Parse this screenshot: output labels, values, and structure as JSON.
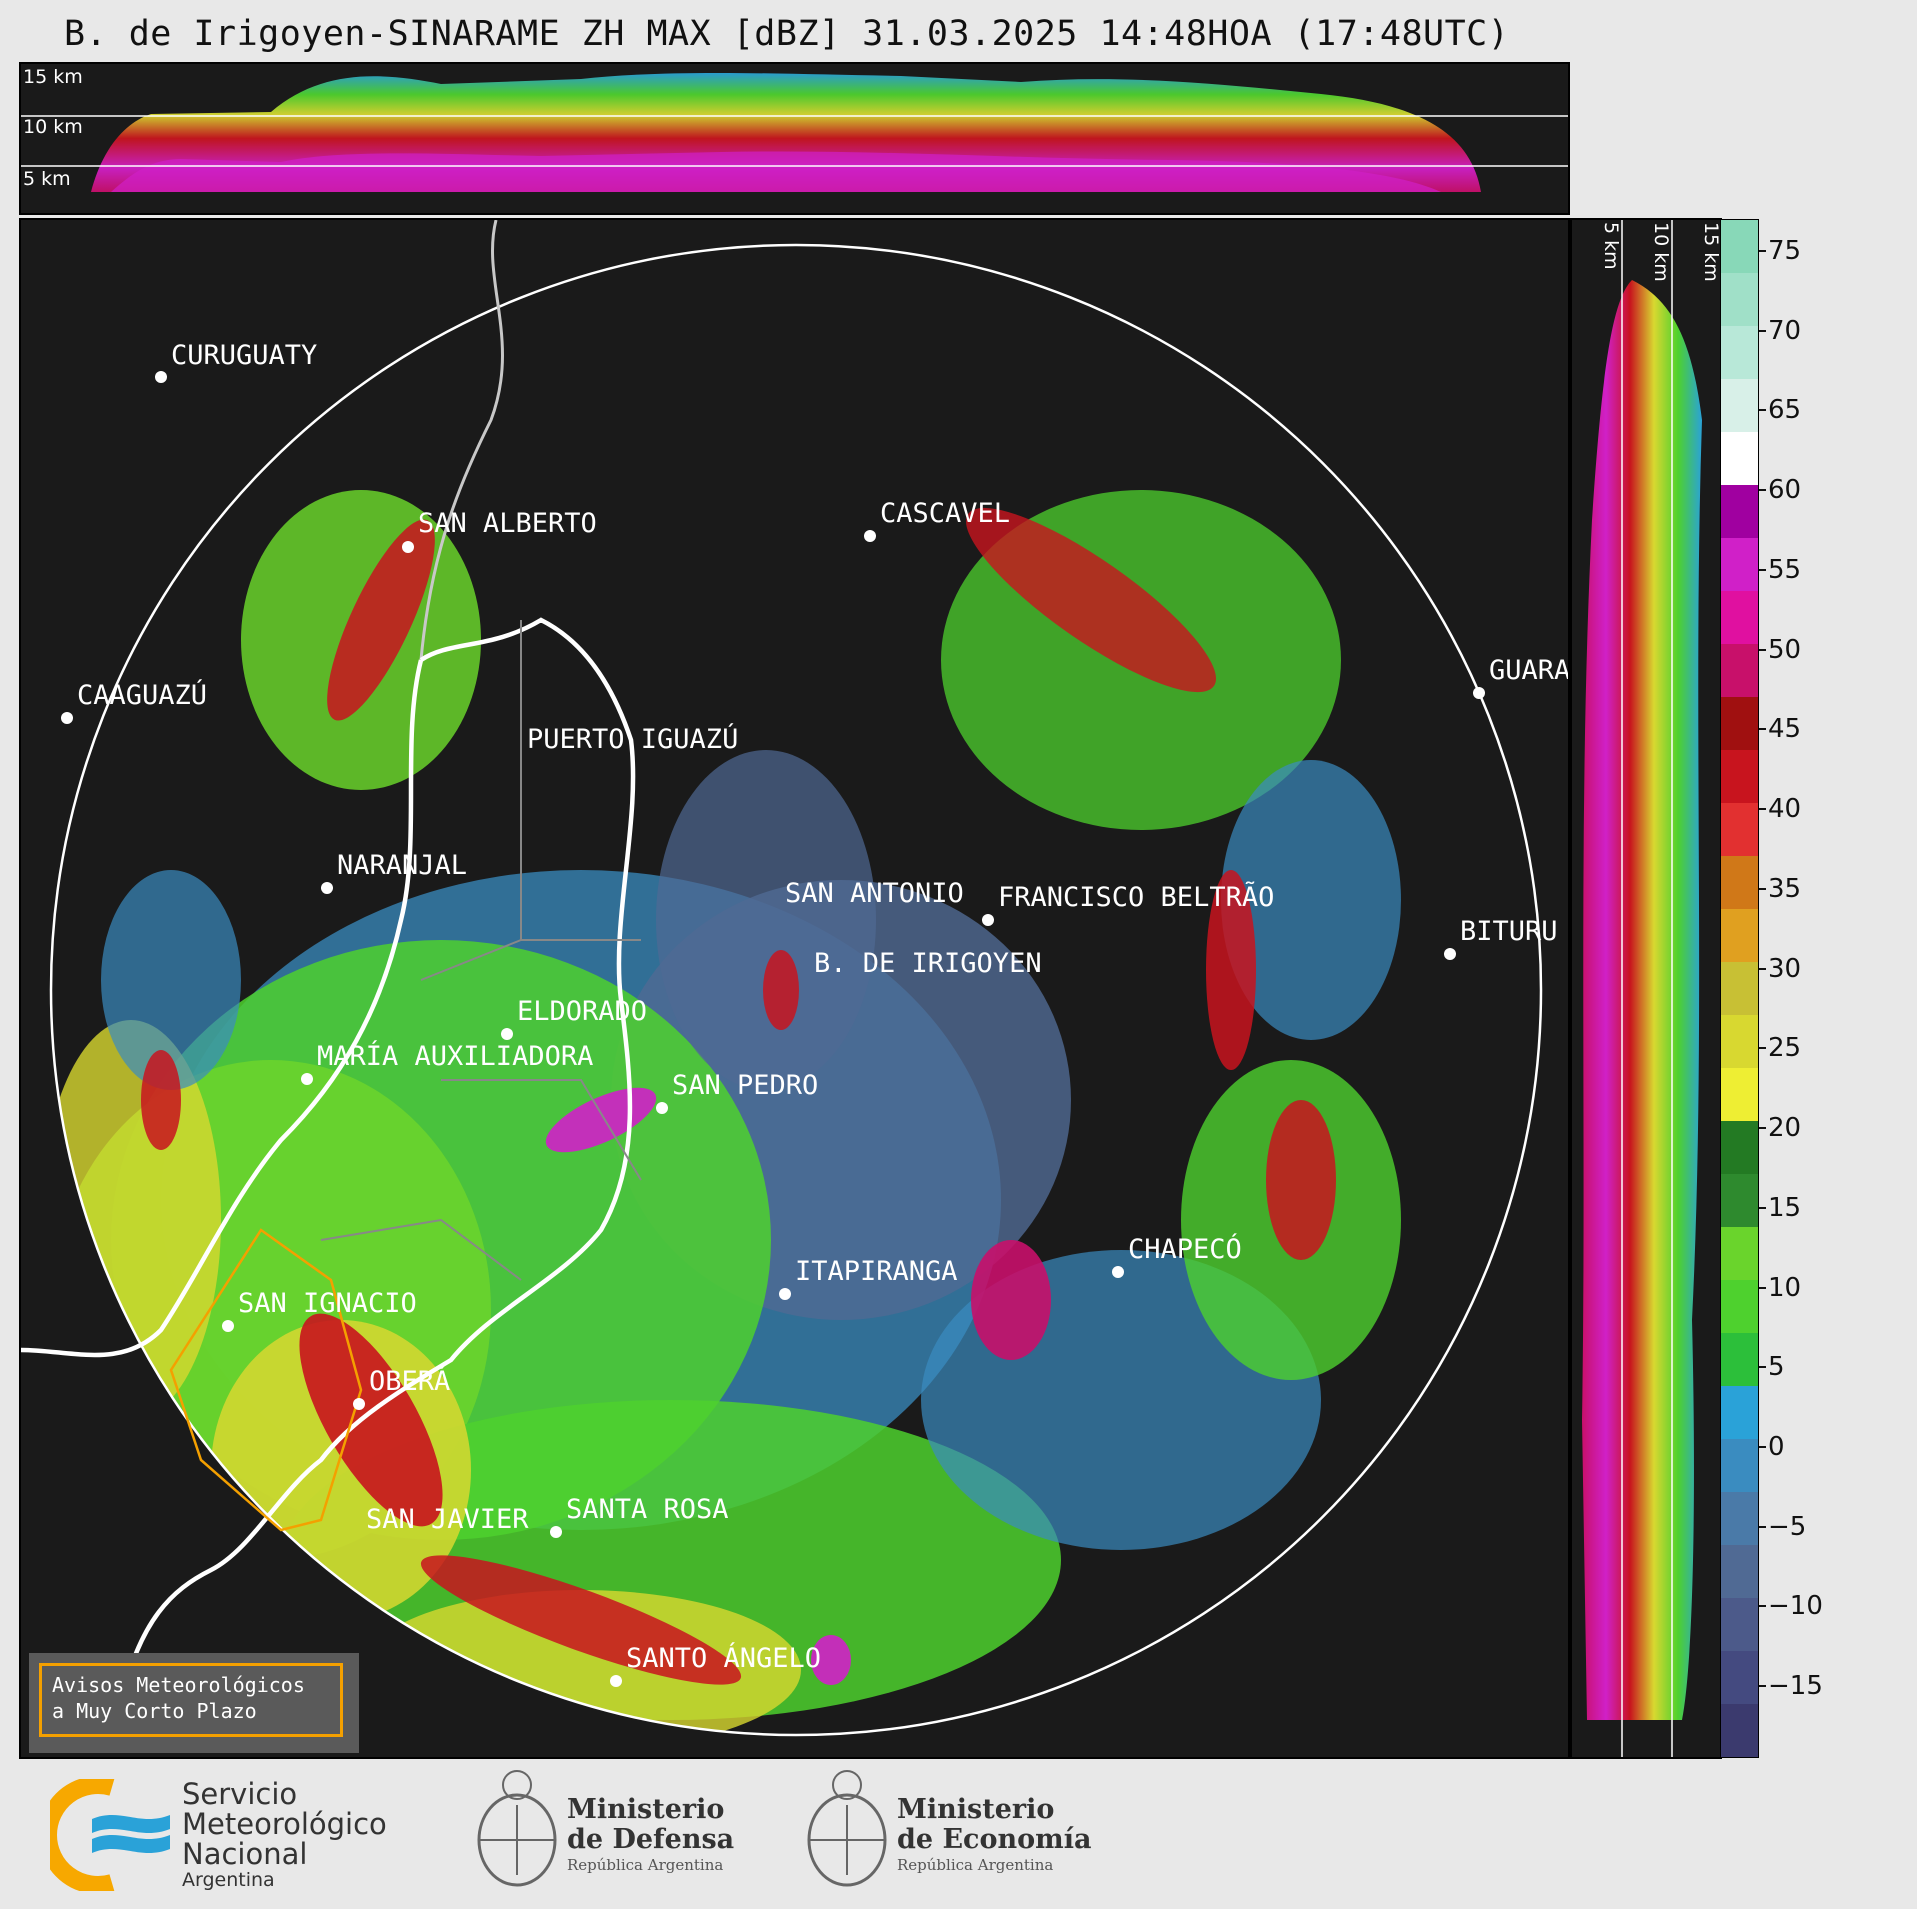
{
  "title": "B. de Irigoyen-SINARAME ZH MAX [dBZ] 31.03.2025 14:48HOA (17:48UTC)",
  "top_strip": {
    "km_labels": [
      "15 km",
      "10 km",
      "5 km"
    ]
  },
  "side_strip": {
    "km_labels": [
      "5 km",
      "10 km",
      "15 km"
    ]
  },
  "colorbar": {
    "unit": "dBZ",
    "ticks": [
      "75",
      "70",
      "65",
      "60",
      "55",
      "50",
      "45",
      "40",
      "35",
      "30",
      "25",
      "20",
      "15",
      "10",
      "5",
      "0",
      "−5",
      "−10",
      "−15"
    ],
    "colors": [
      "#3b3a6e",
      "#444a80",
      "#4c5a8a",
      "#506a94",
      "#4a7aa8",
      "#3a8cc0",
      "#2aa2d8",
      "#2cbf3a",
      "#4ed12e",
      "#6ad42c",
      "#2e8a2e",
      "#237a23",
      "#eeee33",
      "#d8d830",
      "#c8c034",
      "#e0a020",
      "#d07818",
      "#e23030",
      "#c8141e",
      "#a01010",
      "#c8106a",
      "#e010a0",
      "#d020c8",
      "#a000a0",
      "#ffffff",
      "#d8f0e8",
      "#b8e8d8",
      "#a0e0c8",
      "#88d8b8"
    ]
  },
  "cities": [
    {
      "name": "CURUGUATY",
      "label": "CURUGUATY"
    },
    {
      "name": "SAN ALBERTO",
      "label": "SAN ALBERTO"
    },
    {
      "name": "CASCAVEL",
      "label": "CASCAVEL"
    },
    {
      "name": "CAAGUAZU",
      "label": "CAAGUAZÚ"
    },
    {
      "name": "GUARAPUAVA",
      "label": "GUARA"
    },
    {
      "name": "PUERTO IGUAZU",
      "label": "PUERTO IGUAZÚ"
    },
    {
      "name": "NARANJAL",
      "label": "NARANJAL"
    },
    {
      "name": "SAN ANTONIO",
      "label": "SAN ANTONIO"
    },
    {
      "name": "FRANCISCO BELTRAO",
      "label": "FRANCISCO BELTRÃO"
    },
    {
      "name": "B DE IRIGOYEN",
      "label": "B. DE IRIGOYEN"
    },
    {
      "name": "BITURUNA",
      "label": "BITURU"
    },
    {
      "name": "ELDORADO",
      "label": "ELDORADO"
    },
    {
      "name": "MARIA AUXILIADORA",
      "label": "MARÍA AUXILIADORA"
    },
    {
      "name": "SAN PEDRO",
      "label": "SAN PEDRO"
    },
    {
      "name": "CHAPECO",
      "label": "CHAPECÓ"
    },
    {
      "name": "ITAPIRANGA",
      "label": "ITAPIRANGA"
    },
    {
      "name": "SAN IGNACIO",
      "label": "SAN IGNACIO"
    },
    {
      "name": "OBERA",
      "label": "OBERÁ"
    },
    {
      "name": "SAN JAVIER",
      "label": "SAN JAVIER"
    },
    {
      "name": "SANTA ROSA",
      "label": "SANTA ROSA"
    },
    {
      "name": "SANTO ANGELO",
      "label": "SANTO ÁNGELO"
    }
  ],
  "warning": {
    "line1": "Avisos Meteorológicos",
    "line2": "a Muy Corto Plazo"
  },
  "footer": {
    "smn_line1": "Servicio",
    "smn_line2": "Meteorológico",
    "smn_line3": "Nacional",
    "smn_line4": "Argentina",
    "defensa_line1": "Ministerio",
    "defensa_line2": "de Defensa",
    "defensa_line3": "República Argentina",
    "economia_line1": "Ministerio",
    "economia_line2": "de Economía",
    "economia_line3": "República Argentina"
  }
}
